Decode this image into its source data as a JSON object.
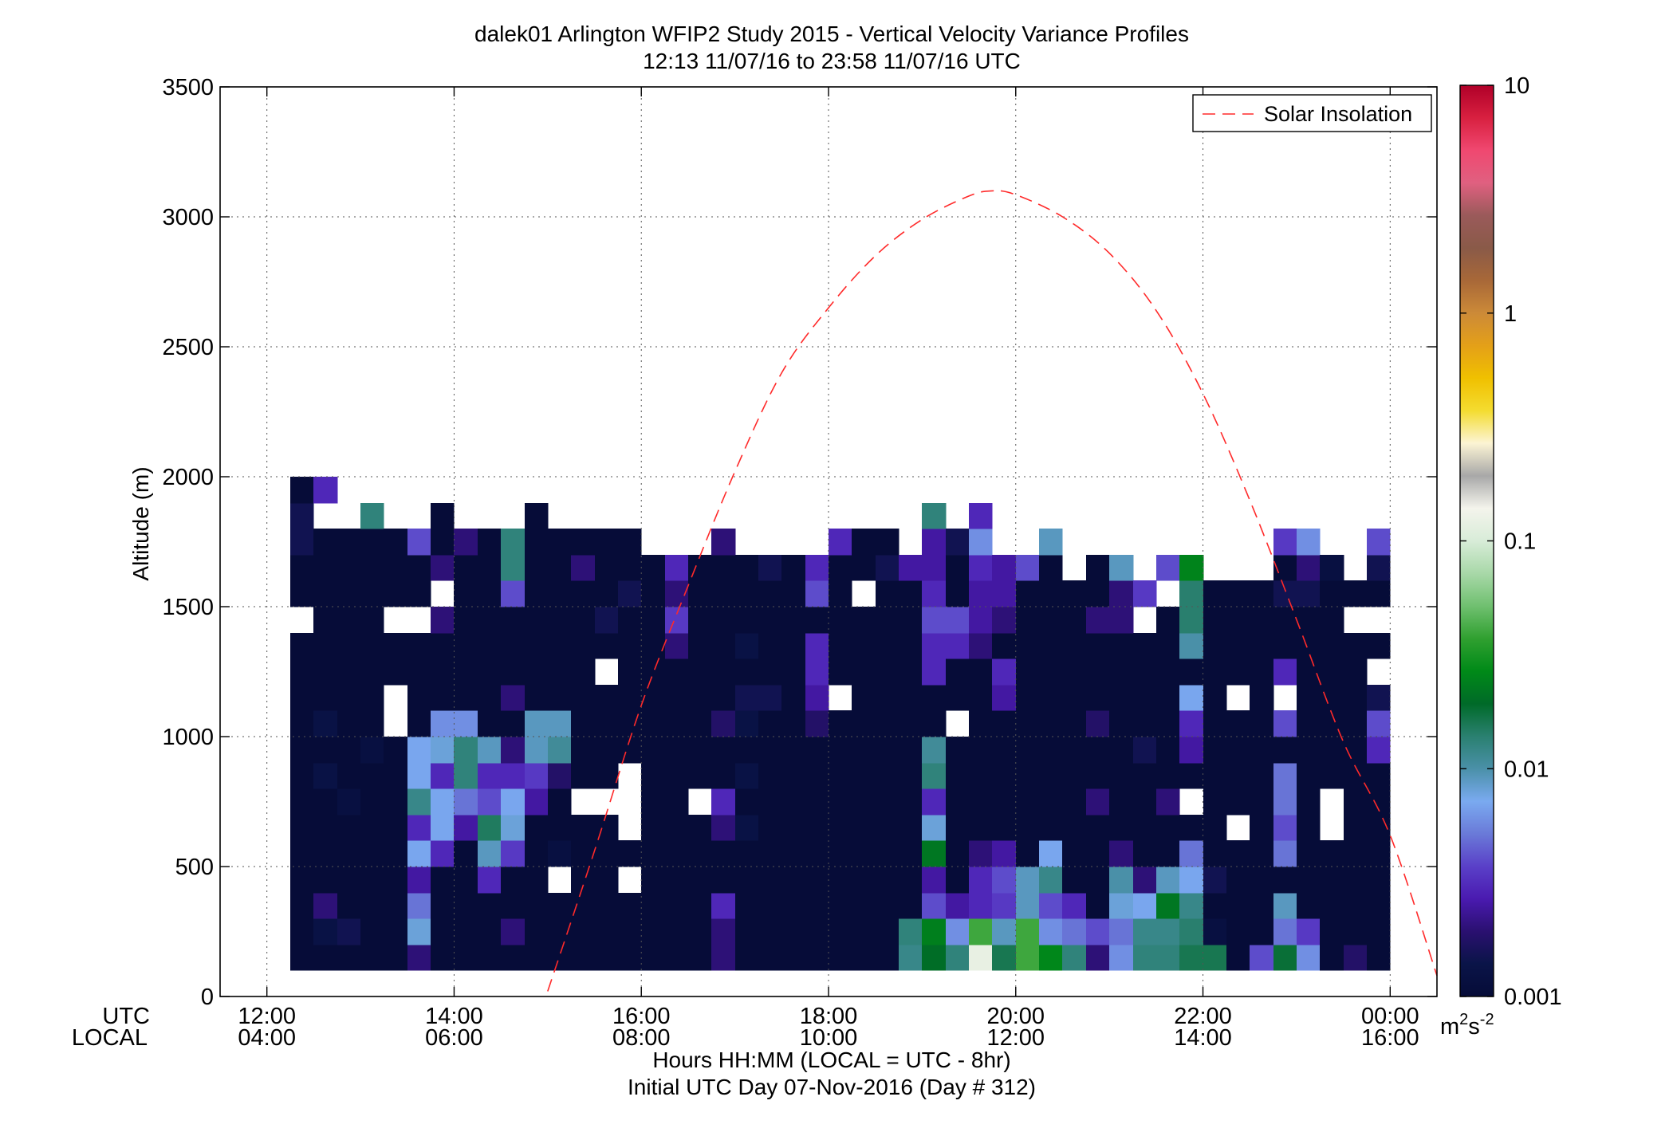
{
  "title_line1": "dalek01 Arlington WFIP2 Study 2015 - Vertical Velocity Variance Profiles",
  "title_line2": "12:13 11/07/16 to 23:58 11/07/16  UTC",
  "ylabel": "Altitude (m)",
  "xlabel_line1": "Hours HH:MM  (LOCAL = UTC - 8hr)",
  "xlabel_line2": "Initial UTC Day 07-Nov-2016 (Day # 312)",
  "row_label_utc": "UTC",
  "row_label_local": "LOCAL",
  "colorbar_unit_base": "m",
  "colorbar_unit_exp1": "2",
  "colorbar_unit_mid": "s",
  "colorbar_unit_exp2": "-2",
  "legend_label": "Solar Insolation",
  "chart_data": {
    "type": "heatmap",
    "x_range_hours": [
      11.5,
      24.5
    ],
    "y_range_m": [
      0,
      3500
    ],
    "grid": true,
    "legend_position": "top-right",
    "x_ticks_utc": [
      "12:00",
      "14:00",
      "16:00",
      "18:00",
      "20:00",
      "22:00",
      "00:00"
    ],
    "x_ticks_local": [
      "04:00",
      "06:00",
      "08:00",
      "10:00",
      "12:00",
      "14:00",
      "16:00"
    ],
    "x_tick_hours": [
      12,
      14,
      16,
      18,
      20,
      22,
      24
    ],
    "y_ticks": [
      "0",
      "500",
      "1000",
      "1500",
      "2000",
      "2500",
      "3000",
      "3500"
    ],
    "colorbar": {
      "scale": "log",
      "range": [
        0.001,
        10
      ],
      "ticks": [
        "0.001",
        "0.01",
        "0.1",
        "1",
        "10"
      ],
      "stops": [
        "#060c38",
        "#0a1448",
        "#2a1070",
        "#4a1ab0",
        "#5a40c8",
        "#6a7ad8",
        "#7aaaf0",
        "#4a90a8",
        "#2a8070",
        "#006a28",
        "#008a18",
        "#30a030",
        "#70c070",
        "#a8d8a8",
        "#d8ecd8",
        "#f4f4ec",
        "#a8a8a8",
        "#fcf4d4",
        "#f4dc30",
        "#f0c000",
        "#e4a018",
        "#cc8a38",
        "#a86838",
        "#8a5a48",
        "#9a5a5a",
        "#e06080",
        "#f04870",
        "#d82040",
        "#b00028"
      ]
    },
    "solar_insolation_curve": {
      "x_hours": [
        15.0,
        15.5,
        16.0,
        16.5,
        17.0,
        17.5,
        18.0,
        18.5,
        19.0,
        19.5,
        19.75,
        20.0,
        20.5,
        21.0,
        21.5,
        22.0,
        22.5,
        23.0,
        23.5,
        24.0,
        24.5
      ],
      "y_m": [
        20,
        560,
        1120,
        1580,
        2020,
        2400,
        2650,
        2850,
        2990,
        3080,
        3100,
        3085,
        3000,
        2860,
        2640,
        2320,
        1910,
        1450,
        980,
        620,
        80
      ]
    },
    "cells": {
      "time_step_hours": 0.25,
      "altitude_step_m": 100,
      "columns": [
        {
          "t0": 12.25,
          "top": 2000,
          "gaps": [
            1500
          ],
          "hi": {
            "1900": 0.0015,
            "1800": 0.0015
          }
        },
        {
          "t0": 12.5,
          "top": 2000,
          "gaps": [
            1900
          ],
          "hi": {
            "2000": 0.003,
            "1100": 0.0013,
            "900": 0.0013,
            "400": 0.002,
            "300": 0.0013
          }
        },
        {
          "t0": 12.75,
          "top": 1800,
          "gaps": [],
          "hi": {
            "800": 0.0012,
            "300": 0.0015
          }
        },
        {
          "t0": 13.0,
          "top": 1900,
          "gaps": [],
          "hi": {
            "1900": 0.013,
            "1000": 0.0012
          }
        },
        {
          "t0": 13.25,
          "top": 1800,
          "gaps": [
            1500,
            1200,
            1100
          ],
          "hi": {}
        },
        {
          "t0": 13.5,
          "top": 1800,
          "gaps": [
            1500
          ],
          "hi": {
            "1800": 0.004,
            "1000": 0.007,
            "900": 0.007,
            "800": 0.012,
            "700": 0.003,
            "600": 0.007,
            "500": 0.0025,
            "400": 0.005,
            "300": 0.008,
            "200": 0.002
          }
        },
        {
          "t0": 13.75,
          "top": 1900,
          "gaps": [
            1600
          ],
          "hi": {
            "1700": 0.002,
            "1500": 0.002,
            "1100": 0.006,
            "1000": 0.008,
            "900": 0.003,
            "800": 0.007,
            "700": 0.007,
            "600": 0.003
          }
        },
        {
          "t0": 14.0,
          "top": 1800,
          "gaps": [],
          "hi": {
            "1800": 0.002,
            "1100": 0.006,
            "1000": 0.013,
            "900": 0.013,
            "800": 0.005,
            "700": 0.0025
          }
        },
        {
          "t0": 14.25,
          "top": 1800,
          "gaps": [],
          "hi": {
            "1000": 0.009,
            "900": 0.003,
            "800": 0.004,
            "700": 0.015,
            "600": 0.009,
            "500": 0.003
          }
        },
        {
          "t0": 14.5,
          "top": 1800,
          "gaps": [],
          "hi": {
            "1800": 0.013,
            "1700": 0.013,
            "1600": 0.004,
            "1200": 0.002,
            "1000": 0.002,
            "900": 0.003,
            "800": 0.007,
            "700": 0.008,
            "600": 0.0035,
            "300": 0.002
          }
        },
        {
          "t0": 14.75,
          "top": 1900,
          "gaps": [],
          "hi": {
            "1100": 0.009,
            "1000": 0.009,
            "900": 0.0035,
            "800": 0.0025
          }
        },
        {
          "t0": 15.0,
          "top": 1800,
          "gaps": [
            500
          ],
          "hi": {
            "1100": 0.009,
            "1000": 0.011,
            "900": 0.0018,
            "600": 0.0012
          }
        },
        {
          "t0": 15.25,
          "top": 1800,
          "gaps": [
            800
          ],
          "hi": {
            "1700": 0.002
          }
        },
        {
          "t0": 15.5,
          "top": 1800,
          "gaps": [
            1300,
            800
          ],
          "hi": {
            "1500": 0.0015
          }
        },
        {
          "t0": 15.75,
          "top": 1800,
          "gaps": [
            900,
            800,
            700,
            500
          ],
          "hi": {
            "1600": 0.0015
          }
        },
        {
          "t0": 16.0,
          "top": 1700,
          "gaps": [],
          "hi": {}
        },
        {
          "t0": 16.25,
          "top": 1700,
          "gaps": [],
          "hi": {
            "1700": 0.003,
            "1600": 0.002,
            "1500": 0.0035,
            "1400": 0.002
          }
        },
        {
          "t0": 16.5,
          "top": 1700,
          "gaps": [
            800
          ],
          "hi": {}
        },
        {
          "t0": 16.75,
          "top": 1800,
          "gaps": [],
          "hi": {
            "1800": 0.002,
            "1100": 0.0018,
            "800": 0.003,
            "700": 0.002,
            "400": 0.003,
            "300": 0.002,
            "200": 0.002
          }
        },
        {
          "t0": 17.0,
          "top": 1700,
          "gaps": [],
          "hi": {
            "1400": 0.0013,
            "1200": 0.0015,
            "1100": 0.0013,
            "900": 0.0013,
            "700": 0.0013
          }
        },
        {
          "t0": 17.25,
          "top": 1700,
          "gaps": [],
          "hi": {
            "1700": 0.0015,
            "1200": 0.0015
          }
        },
        {
          "t0": 17.5,
          "top": 1700,
          "gaps": [],
          "hi": {}
        },
        {
          "t0": 17.75,
          "top": 1700,
          "gaps": [],
          "hi": {
            "1700": 0.003,
            "1600": 0.004,
            "1400": 0.003,
            "1300": 0.003,
            "1200": 0.0025,
            "1100": 0.0018
          }
        },
        {
          "t0": 18.0,
          "top": 1800,
          "gaps": [
            1200
          ],
          "hi": {
            "1800": 0.003
          }
        },
        {
          "t0": 18.25,
          "top": 1800,
          "gaps": [
            1600
          ],
          "hi": {}
        },
        {
          "t0": 18.5,
          "top": 1800,
          "gaps": [],
          "hi": {
            "1700": 0.0015
          }
        },
        {
          "t0": 18.75,
          "top": 1700,
          "gaps": [],
          "hi": {
            "1700": 0.0025,
            "300": 0.013,
            "200": 0.012
          }
        },
        {
          "t0": 19.0,
          "top": 1900,
          "gaps": [],
          "hi": {
            "1900": 0.013,
            "1800": 0.0025,
            "1700": 0.0025,
            "1600": 0.003,
            "1500": 0.004,
            "1400": 0.003,
            "1300": 0.003,
            "1000": 0.011,
            "900": 0.013,
            "800": 0.003,
            "700": 0.008,
            "600": 0.022,
            "500": 0.0025,
            "400": 0.004,
            "300": 0.024,
            "200": 0.02
          }
        },
        {
          "t0": 19.25,
          "top": 1800,
          "gaps": [
            1100
          ],
          "hi": {
            "1800": 0.0015,
            "1500": 0.004,
            "1400": 0.003,
            "400": 0.0025,
            "300": 0.006,
            "200": 0.013
          }
        },
        {
          "t0": 19.5,
          "top": 1900,
          "gaps": [],
          "hi": {
            "1900": 0.003,
            "1800": 0.006,
            "1700": 0.003,
            "1600": 0.0025,
            "1500": 0.0025,
            "1400": 0.002,
            "600": 0.002,
            "500": 0.003,
            "400": 0.003,
            "300": 0.04,
            "200": 0.12
          }
        },
        {
          "t0": 19.75,
          "top": 1700,
          "gaps": [],
          "hi": {
            "1700": 0.0025,
            "1600": 0.0025,
            "1500": 0.002,
            "1300": 0.003,
            "1200": 0.0025,
            "600": 0.0025,
            "500": 0.004,
            "400": 0.0035,
            "300": 0.009,
            "200": 0.016
          }
        },
        {
          "t0": 20.0,
          "top": 1700,
          "gaps": [],
          "hi": {
            "1700": 0.004,
            "500": 0.009,
            "400": 0.009,
            "300": 0.04,
            "200": 0.04
          }
        },
        {
          "t0": 20.25,
          "top": 1800,
          "gaps": [],
          "hi": {
            "1800": 0.009,
            "600": 0.007,
            "500": 0.012,
            "400": 0.004,
            "300": 0.006,
            "200": 0.026
          }
        },
        {
          "t0": 20.5,
          "top": 1600,
          "gaps": [],
          "hi": {
            "400": 0.003,
            "300": 0.005,
            "200": 0.013
          }
        },
        {
          "t0": 20.75,
          "top": 1700,
          "gaps": [],
          "hi": {
            "1500": 0.002,
            "1100": 0.0018,
            "800": 0.002,
            "300": 0.004,
            "200": 0.002
          }
        },
        {
          "t0": 21.0,
          "top": 1700,
          "gaps": [],
          "hi": {
            "1700": 0.009,
            "1600": 0.002,
            "1500": 0.002,
            "600": 0.002,
            "500": 0.01,
            "400": 0.008,
            "300": 0.005,
            "200": 0.006
          }
        },
        {
          "t0": 21.25,
          "top": 1600,
          "gaps": [
            1500
          ],
          "hi": {
            "1600": 0.0035,
            "1500": 0.004,
            "1000": 0.0015,
            "500": 0.002,
            "400": 0.007,
            "300": 0.012,
            "200": 0.013
          }
        },
        {
          "t0": 21.5,
          "top": 1700,
          "gaps": [
            1600
          ],
          "hi": {
            "1700": 0.004,
            "800": 0.002,
            "500": 0.009,
            "400": 0.022,
            "300": 0.012,
            "200": 0.013
          }
        },
        {
          "t0": 21.75,
          "top": 1700,
          "gaps": [
            800
          ],
          "hi": {
            "1700": 0.025,
            "1600": 0.014,
            "1500": 0.014,
            "1400": 0.01,
            "1200": 0.007,
            "1100": 0.003,
            "1000": 0.0025,
            "600": 0.005,
            "500": 0.007,
            "400": 0.012,
            "300": 0.014,
            "200": 0.016
          }
        },
        {
          "t0": 22.0,
          "top": 1600,
          "gaps": [],
          "hi": {
            "500": 0.0015,
            "300": 0.0012,
            "200": 0.016
          }
        },
        {
          "t0": 22.25,
          "top": 1600,
          "gaps": [
            1200,
            700
          ],
          "hi": {}
        },
        {
          "t0": 22.5,
          "top": 1600,
          "gaps": [],
          "hi": {
            "200": 0.004
          }
        },
        {
          "t0": 22.75,
          "top": 1800,
          "gaps": [
            1200
          ],
          "hi": {
            "1800": 0.0035,
            "1600": 0.0015,
            "1300": 0.003,
            "1100": 0.004,
            "900": 0.005,
            "800": 0.005,
            "700": 0.004,
            "600": 0.005,
            "400": 0.009,
            "300": 0.005,
            "200": 0.018
          }
        },
        {
          "t0": 23.0,
          "top": 1800,
          "gaps": [],
          "hi": {
            "1800": 0.006,
            "1700": 0.002,
            "1600": 0.0015,
            "300": 0.0035,
            "200": 0.006
          }
        },
        {
          "t0": 23.25,
          "top": 1700,
          "gaps": [
            800,
            700
          ],
          "hi": {
            "1700": 0.0012
          }
        },
        {
          "t0": 23.5,
          "top": 1600,
          "gaps": [
            1500
          ],
          "hi": {
            "200": 0.0018
          }
        },
        {
          "t0": 23.75,
          "top": 1800,
          "gaps": [
            1500,
            1300
          ],
          "hi": {
            "1800": 0.004,
            "1700": 0.0015,
            "1200": 0.0015,
            "1100": 0.004,
            "1000": 0.003
          }
        }
      ]
    }
  }
}
